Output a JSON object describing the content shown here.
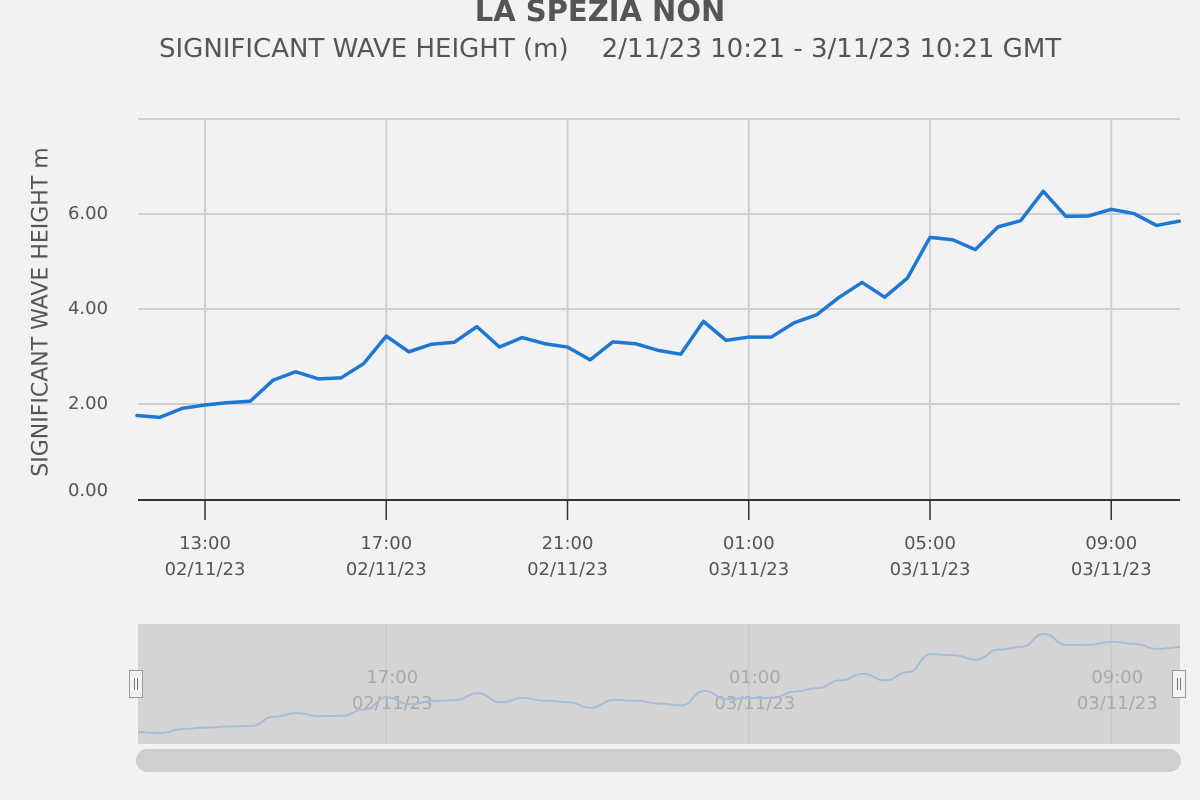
{
  "chart_data": {
    "type": "line",
    "title": "LA SPEZIA NON",
    "subtitle": "SIGNIFICANT WAVE HEIGHT (m)    2/11/23 10:21 - 3/11/23 10:21 GMT",
    "ylabel": "SIGNIFICANT WAVE HEIGHT m",
    "xlabel": "",
    "ylim": [
      0,
      8
    ],
    "yticks": [
      "0.00",
      "2.00",
      "4.00",
      "6.00"
    ],
    "xticks": [
      {
        "time": "13:00",
        "date": "02/11/23"
      },
      {
        "time": "17:00",
        "date": "02/11/23"
      },
      {
        "time": "21:00",
        "date": "02/11/23"
      },
      {
        "time": "01:00",
        "date": "03/11/23"
      },
      {
        "time": "05:00",
        "date": "03/11/23"
      },
      {
        "time": "09:00",
        "date": "03/11/23"
      }
    ],
    "navigator_ticks": [
      {
        "time": "17:00",
        "date": "02/11/23"
      },
      {
        "time": "01:00",
        "date": "03/11/23"
      },
      {
        "time": "09:00",
        "date": "03/11/23"
      }
    ],
    "grid": true,
    "series": [
      {
        "color": "#1f77d4",
        "x": [
          "11:30",
          "12:00",
          "12:30",
          "13:00",
          "13:30",
          "14:00",
          "14:30",
          "15:00",
          "15:30",
          "16:00",
          "16:30",
          "17:00",
          "17:30",
          "18:00",
          "18:30",
          "19:00",
          "19:30",
          "20:00",
          "20:30",
          "21:00",
          "21:30",
          "22:00",
          "22:30",
          "23:00",
          "23:30",
          "00:00",
          "00:30",
          "01:00",
          "01:30",
          "02:00",
          "02:30",
          "03:00",
          "03:30",
          "04:00",
          "04:30",
          "05:00",
          "05:30",
          "06:00",
          "06:30",
          "07:00",
          "07:30",
          "08:00",
          "08:30",
          "09:00",
          "09:30",
          "10:00",
          "10:30"
        ],
        "values": [
          1.78,
          1.74,
          1.93,
          2.0,
          2.05,
          2.08,
          2.52,
          2.7,
          2.55,
          2.57,
          2.87,
          3.45,
          3.12,
          3.28,
          3.32,
          3.65,
          3.22,
          3.42,
          3.29,
          3.22,
          2.95,
          3.33,
          3.29,
          3.15,
          3.07,
          3.76,
          3.36,
          3.43,
          3.43,
          3.73,
          3.9,
          4.27,
          4.58,
          4.27,
          4.67,
          5.53,
          5.48,
          5.27,
          5.75,
          5.88,
          6.5,
          5.97,
          5.98,
          6.12,
          6.03,
          5.78,
          5.87
        ]
      }
    ]
  }
}
